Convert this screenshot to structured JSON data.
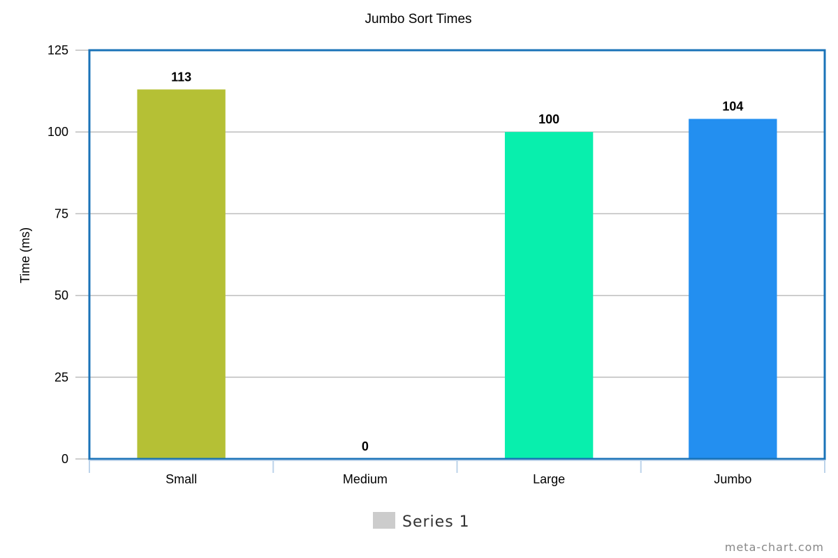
{
  "chart_data": {
    "type": "bar",
    "title": "Jumbo Sort Times",
    "ylabel": "Time (ms)",
    "xlabel": "",
    "categories": [
      "Small",
      "Medium",
      "Large",
      "Jumbo"
    ],
    "series": [
      {
        "name": "Series 1",
        "values": [
          113,
          0,
          100,
          104
        ],
        "colors": [
          "#b5c035",
          "#b5c035",
          "#08efad",
          "#238ff0"
        ]
      }
    ],
    "ylim": [
      0,
      125
    ],
    "yticks": [
      "0",
      "25",
      "50",
      "75",
      "100",
      "125"
    ],
    "data_labels": [
      "113",
      "0",
      "100",
      "104"
    ],
    "grid": true,
    "legend_position": "bottom",
    "legend_swatch_color": "#cccccc",
    "frame_color": "#1a73b8"
  },
  "credit": "meta-chart.com"
}
